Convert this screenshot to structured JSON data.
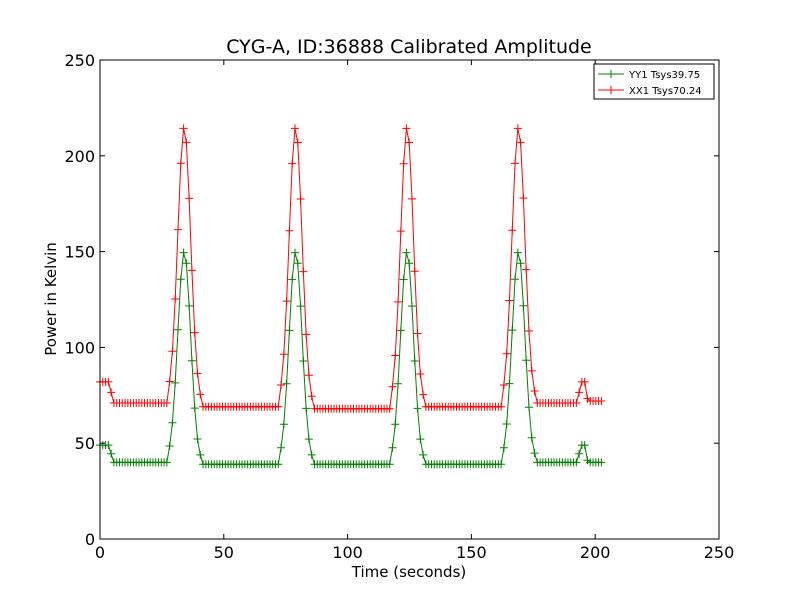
{
  "chart_data": {
    "type": "line",
    "title": "CYG-A, ID:36888 Calibrated Amplitude",
    "xlabel": "Time (seconds)",
    "ylabel": "Power in Kelvin",
    "xlim": [
      0,
      250
    ],
    "ylim": [
      0,
      250
    ],
    "xticks": [
      0,
      50,
      100,
      150,
      200,
      250
    ],
    "yticks": [
      0,
      50,
      100,
      150,
      200,
      250
    ],
    "grid": false,
    "legend_position": "top-right",
    "marker": "+",
    "series": [
      {
        "name": "YY1 Tsys39.75",
        "color": "#008000",
        "baseline_segments": [
          {
            "x": [
              0,
              4
            ],
            "y": 49
          },
          {
            "x": [
              5,
              28
            ],
            "y": 40
          },
          {
            "x": [
              41,
              73
            ],
            "y": 39
          },
          {
            "x": [
              86,
              118
            ],
            "y": 39
          },
          {
            "x": [
              131,
              163
            ],
            "y": 39
          },
          {
            "x": [
              176,
              193
            ],
            "y": 40
          },
          {
            "x": [
              194,
              196
            ],
            "y": 49
          },
          {
            "x": [
              197,
              203
            ],
            "y": 40
          }
        ],
        "peaks": [
          {
            "x": 34,
            "y": 150
          },
          {
            "x": 79,
            "y": 150
          },
          {
            "x": 124,
            "y": 150
          },
          {
            "x": 169,
            "y": 150
          }
        ]
      },
      {
        "name": "XX1 Tsys70.24",
        "color": "#ff0000",
        "baseline_segments": [
          {
            "x": [
              0,
              4
            ],
            "y": 82
          },
          {
            "x": [
              5,
              28
            ],
            "y": 71
          },
          {
            "x": [
              41,
              73
            ],
            "y": 69
          },
          {
            "x": [
              86,
              118
            ],
            "y": 68
          },
          {
            "x": [
              131,
              163
            ],
            "y": 69
          },
          {
            "x": [
              176,
              193
            ],
            "y": 71
          },
          {
            "x": [
              194,
              196
            ],
            "y": 82
          },
          {
            "x": [
              197,
              203
            ],
            "y": 72
          }
        ],
        "peaks": [
          {
            "x": 34,
            "y": 215
          },
          {
            "x": 79,
            "y": 215
          },
          {
            "x": 124,
            "y": 215
          },
          {
            "x": 169,
            "y": 215
          }
        ]
      }
    ]
  }
}
